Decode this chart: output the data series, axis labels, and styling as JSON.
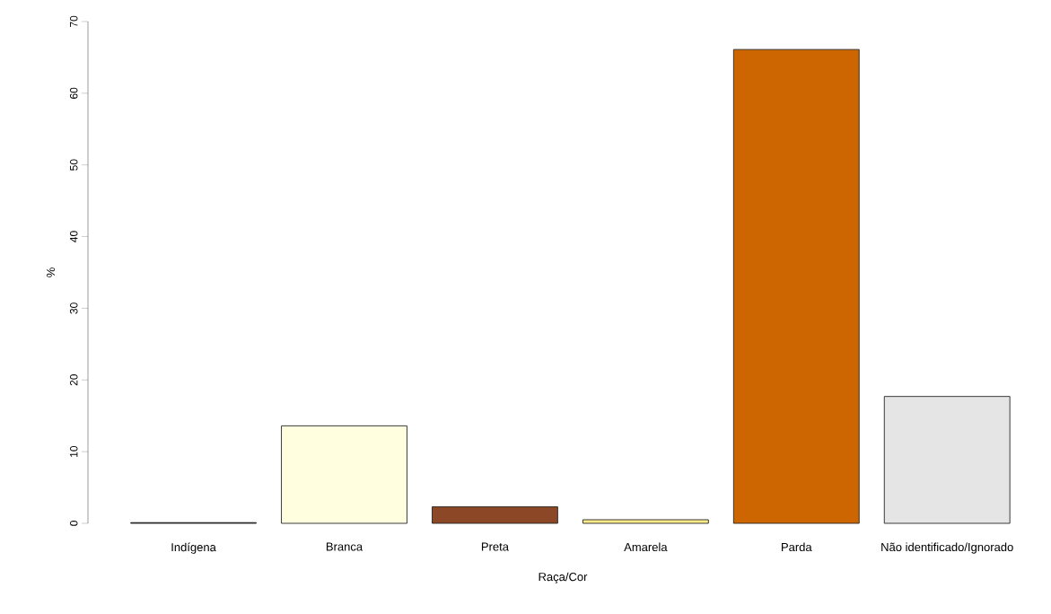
{
  "chart_data": {
    "type": "bar",
    "xlabel": "Raça/Cor",
    "ylabel": "%",
    "categories": [
      "Indígena",
      "Branca",
      "Preta",
      "Amarela",
      "Parda",
      "Não identificado/Ignorado"
    ],
    "values": [
      0.1,
      13.6,
      2.3,
      0.5,
      66.1,
      17.7
    ],
    "colors": [
      "#000000",
      "#FFFFE0",
      "#8B4726",
      "#FFEC8B",
      "#CD6600",
      "#E5E5E5"
    ],
    "ylim": [
      0,
      70
    ],
    "yticks": [
      0,
      10,
      20,
      30,
      40,
      50,
      60,
      70
    ]
  }
}
